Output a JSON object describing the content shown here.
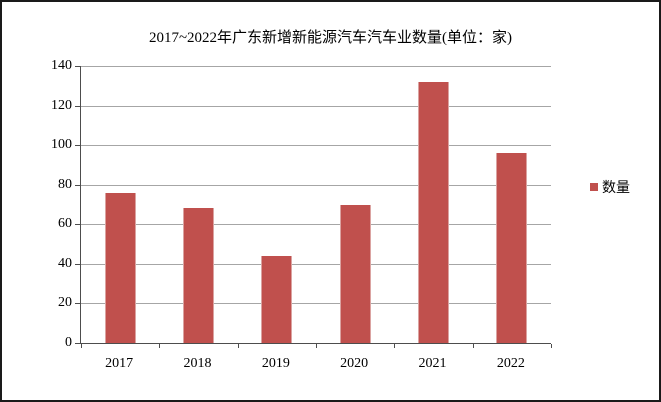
{
  "chart_data": {
    "type": "bar",
    "title": "2017~2022年广东新增新能源汽车汽车业数量(单位：家)",
    "categories": [
      "2017",
      "2018",
      "2019",
      "2020",
      "2021",
      "2022"
    ],
    "series": [
      {
        "name": "数量",
        "values": [
          76,
          68,
          44,
          70,
          132,
          96
        ],
        "color": "#c0504d"
      }
    ],
    "xlabel": "",
    "ylabel": "",
    "ylim": [
      0,
      140
    ],
    "ytick_step": 20,
    "yticks": [
      0,
      20,
      40,
      60,
      80,
      100,
      120,
      140
    ],
    "grid": true,
    "legend_position": "right",
    "colors": {
      "bar_fill": "#c0504d",
      "bar_edge": "#dba3a1",
      "gridline": "#a6a6a6",
      "axis": "#4d4d4d",
      "frame_border": "#1a1a1a",
      "background": "#ffffff",
      "text": "#000000"
    }
  }
}
